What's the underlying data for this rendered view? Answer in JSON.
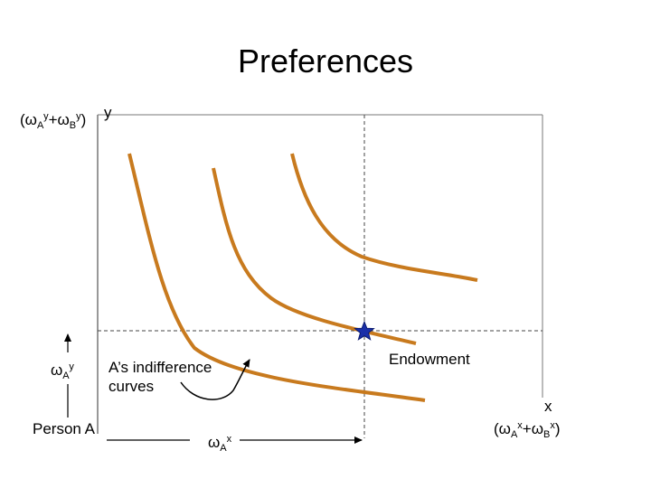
{
  "title": "Preferences",
  "labels": {
    "y_total": [
      "(ω",
      "A",
      "y",
      "+ω",
      "B",
      "y",
      ")"
    ],
    "y_axis": "y",
    "x_axis": "x",
    "y_endow": [
      "ω",
      "A",
      "y"
    ],
    "person": "Person A",
    "x_endow": [
      "ω",
      "A",
      "x"
    ],
    "x_total": [
      "(ω",
      "A",
      "x",
      "+ω",
      "B",
      "x",
      ")"
    ],
    "curves_note": [
      "A’s indifference",
      "curves"
    ],
    "endowment": "Endowment"
  }
}
